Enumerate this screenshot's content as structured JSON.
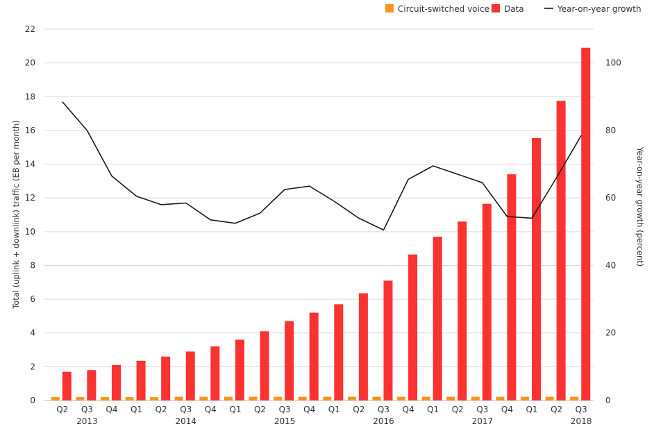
{
  "chart_data": {
    "type": "bar",
    "categories": [
      "Q2",
      "Q3",
      "Q4",
      "Q1",
      "Q2",
      "Q3",
      "Q4",
      "Q1",
      "Q2",
      "Q3",
      "Q4",
      "Q1",
      "Q2",
      "Q3",
      "Q4",
      "Q1",
      "Q2",
      "Q3",
      "Q4",
      "Q1",
      "Q2",
      "Q3"
    ],
    "years": [
      {
        "label": "2013",
        "index": 1
      },
      {
        "label": "2014",
        "index": 5
      },
      {
        "label": "2015",
        "index": 9
      },
      {
        "label": "2016",
        "index": 13
      },
      {
        "label": "2017",
        "index": 17
      },
      {
        "label": "2018",
        "index": 21
      }
    ],
    "series": [
      {
        "name": "Circuit-switched voice",
        "kind": "bar",
        "axis": "left",
        "color": "#f7941d",
        "values": [
          0.2,
          0.2,
          0.2,
          0.2,
          0.2,
          0.22,
          0.22,
          0.22,
          0.22,
          0.22,
          0.22,
          0.22,
          0.22,
          0.22,
          0.22,
          0.22,
          0.22,
          0.22,
          0.22,
          0.22,
          0.22,
          0.22
        ]
      },
      {
        "name": "Data",
        "kind": "bar",
        "axis": "left",
        "color": "#fa3232",
        "values": [
          1.7,
          1.8,
          2.1,
          2.35,
          2.6,
          2.9,
          3.2,
          3.6,
          4.1,
          4.7,
          5.2,
          5.7,
          6.35,
          7.1,
          8.65,
          9.7,
          10.6,
          11.65,
          13.4,
          15.55,
          17.75,
          20.9
        ]
      },
      {
        "name": "Year-on-year growth",
        "kind": "line",
        "axis": "right",
        "color": "#1a1a1a",
        "values": [
          88.5,
          80,
          66.5,
          60.5,
          58,
          58.5,
          53.5,
          52.5,
          55.5,
          62.5,
          63.5,
          59,
          54,
          50.5,
          65.5,
          69.5,
          67,
          64.5,
          54.5,
          54,
          66,
          78.5
        ]
      }
    ],
    "ylabel": "Total (uplink + downlink) traffic (EB per month)",
    "y2label": "Year-on-year growth (percent)",
    "ylim": [
      0,
      22
    ],
    "y2lim": [
      0,
      110
    ],
    "yticks": [
      0,
      2,
      4,
      6,
      8,
      10,
      12,
      14,
      16,
      18,
      20,
      22
    ],
    "y2ticks": [
      0,
      20,
      40,
      60,
      80,
      100
    ],
    "grid": true,
    "legend_position": "top-right"
  },
  "legend": {
    "voice_label": "Circuit-switched voice",
    "data_label": "Data",
    "growth_label": "Year-on-year growth"
  }
}
